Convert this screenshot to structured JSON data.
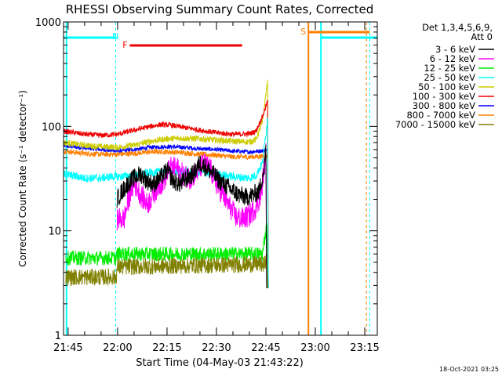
{
  "chart_data": {
    "type": "line",
    "title": "RHESSI Observing Summary Count Rates, Corrected",
    "xlabel": "Start Time (04-May-03 21:43:22)",
    "ylabel": "Corrected Count Rate (s⁻¹ detector⁻¹)",
    "yscale": "log",
    "ylim": [
      1,
      1000
    ],
    "xlim_minutes": [
      -1.4,
      93.8
    ],
    "x_ticks": [
      {
        "label": "21:45",
        "min": 0
      },
      {
        "label": "22:00",
        "min": 15
      },
      {
        "label": "22:15",
        "min": 30
      },
      {
        "label": "22:30",
        "min": 45
      },
      {
        "label": "22:45",
        "min": 60
      },
      {
        "label": "23:00",
        "min": 75
      },
      {
        "label": "23:15",
        "min": 90
      }
    ],
    "y_ticks": [
      {
        "label": "1",
        "value": 1
      },
      {
        "label": "10",
        "value": 10
      },
      {
        "label": "100",
        "value": 100
      },
      {
        "label": "1000",
        "value": 1000
      }
    ],
    "legend_header": [
      "Det 1,3,4,5,6,9,",
      "Att 0"
    ],
    "legend": [
      {
        "label": "3 - 6 keV",
        "color": "#000000"
      },
      {
        "label": "6 - 12 keV",
        "color": "#ff00ff"
      },
      {
        "label": "12 - 25 keV",
        "color": "#00ee00"
      },
      {
        "label": "25 - 50 keV",
        "color": "#00ffff"
      },
      {
        "label": "50 - 100 keV",
        "color": "#cccc00"
      },
      {
        "label": "100 - 300 keV",
        "color": "#ee0000"
      },
      {
        "label": "300 - 800 keV",
        "color": "#0000ff"
      },
      {
        "label": "800 - 7000 keV",
        "color": "#ff8000"
      },
      {
        "label": "7000 - 15000 keV",
        "color": "#808000"
      }
    ],
    "series": [
      {
        "name": "3 - 6 keV",
        "color": "#000000",
        "noise": 0.09,
        "points": [
          [
            14.8,
            20
          ],
          [
            16,
            23
          ],
          [
            18,
            28
          ],
          [
            20,
            32
          ],
          [
            22,
            35
          ],
          [
            24,
            30
          ],
          [
            26,
            28
          ],
          [
            28,
            32
          ],
          [
            30,
            38
          ],
          [
            32,
            30
          ],
          [
            34,
            28
          ],
          [
            36,
            32
          ],
          [
            38,
            35
          ],
          [
            40,
            45
          ],
          [
            42,
            40
          ],
          [
            44,
            35
          ],
          [
            46,
            30
          ],
          [
            48,
            27
          ],
          [
            50,
            24
          ],
          [
            52,
            22
          ],
          [
            54,
            21
          ],
          [
            56,
            22
          ],
          [
            58,
            24
          ],
          [
            59.5,
            40
          ],
          [
            60,
            60
          ]
        ]
      },
      {
        "name": "6 - 12 keV",
        "color": "#ff00ff",
        "noise": 0.11,
        "points": [
          [
            14.8,
            13
          ],
          [
            16,
            13
          ],
          [
            17,
            13
          ],
          [
            18,
            18
          ],
          [
            19,
            24
          ],
          [
            20,
            28
          ],
          [
            21,
            26
          ],
          [
            22,
            22
          ],
          [
            23,
            20
          ],
          [
            24,
            18
          ],
          [
            25,
            20
          ],
          [
            27,
            26
          ],
          [
            29,
            30
          ],
          [
            30,
            36
          ],
          [
            31,
            40
          ],
          [
            33,
            40
          ],
          [
            35,
            34
          ],
          [
            37,
            32
          ],
          [
            39,
            36
          ],
          [
            41,
            44
          ],
          [
            43,
            40
          ],
          [
            45,
            28
          ],
          [
            47,
            22
          ],
          [
            49,
            17
          ],
          [
            51,
            13.5
          ],
          [
            53,
            13
          ],
          [
            55,
            14
          ],
          [
            57,
            17
          ],
          [
            58.5,
            22
          ],
          [
            59.5,
            40
          ],
          [
            60,
            55
          ]
        ]
      },
      {
        "name": "12 - 25 keV",
        "color": "#00ee00",
        "noise": 0.07,
        "points": [
          [
            -0.7,
            5.5
          ],
          [
            14.5,
            5.5
          ],
          [
            15,
            6
          ],
          [
            59,
            6
          ],
          [
            59.5,
            8
          ],
          [
            60,
            10
          ],
          [
            60.3,
            11
          ]
        ]
      },
      {
        "name": "25 - 50 keV",
        "color": "#00ffff",
        "noise": 0.04,
        "points": [
          [
            -1.4,
            35
          ],
          [
            5,
            32
          ],
          [
            10,
            32
          ],
          [
            13,
            33
          ],
          [
            15,
            33
          ],
          [
            20,
            34
          ],
          [
            25,
            36
          ],
          [
            30,
            37
          ],
          [
            35,
            37
          ],
          [
            40,
            36
          ],
          [
            45,
            35
          ],
          [
            50,
            33
          ],
          [
            55,
            32
          ],
          [
            57,
            34
          ],
          [
            59,
            45
          ],
          [
            60.5,
            120
          ]
        ]
      },
      {
        "name": "50 - 100 keV",
        "color": "#cccc00",
        "noise": 0.03,
        "points": [
          [
            -1.4,
            70
          ],
          [
            5,
            66
          ],
          [
            10,
            64
          ],
          [
            15,
            63
          ],
          [
            20,
            66
          ],
          [
            25,
            72
          ],
          [
            30,
            76
          ],
          [
            35,
            77
          ],
          [
            40,
            76
          ],
          [
            45,
            74
          ],
          [
            50,
            72
          ],
          [
            55,
            71
          ],
          [
            57,
            75
          ],
          [
            59,
            110
          ],
          [
            60.5,
            280
          ]
        ]
      },
      {
        "name": "100 - 300 keV",
        "color": "#ee0000",
        "noise": 0.025,
        "points": [
          [
            -1.4,
            90
          ],
          [
            5,
            84
          ],
          [
            10,
            82
          ],
          [
            15,
            84
          ],
          [
            20,
            92
          ],
          [
            25,
            100
          ],
          [
            28,
            104
          ],
          [
            31,
            103
          ],
          [
            35,
            98
          ],
          [
            40,
            92
          ],
          [
            45,
            87
          ],
          [
            50,
            84
          ],
          [
            55,
            85
          ],
          [
            57,
            90
          ],
          [
            59,
            125
          ],
          [
            60.5,
            175
          ]
        ]
      },
      {
        "name": "300 - 800 keV",
        "color": "#0000ff",
        "noise": 0.02,
        "points": [
          [
            -1.4,
            65
          ],
          [
            5,
            62
          ],
          [
            10,
            60
          ],
          [
            15,
            58
          ],
          [
            20,
            60
          ],
          [
            25,
            63
          ],
          [
            30,
            64
          ],
          [
            35,
            63
          ],
          [
            40,
            61
          ],
          [
            45,
            60
          ],
          [
            50,
            58
          ],
          [
            55,
            57
          ],
          [
            60.5,
            59
          ]
        ]
      },
      {
        "name": "800 - 7000 keV",
        "color": "#ff8000",
        "noise": 0.025,
        "points": [
          [
            -1.4,
            58
          ],
          [
            5,
            55
          ],
          [
            10,
            54
          ],
          [
            15,
            54
          ],
          [
            20,
            55
          ],
          [
            25,
            57
          ],
          [
            30,
            57
          ],
          [
            35,
            56
          ],
          [
            40,
            54
          ],
          [
            45,
            53
          ],
          [
            50,
            51
          ],
          [
            55,
            51
          ],
          [
            60.5,
            52
          ]
        ]
      },
      {
        "name": "7000 - 15000 keV",
        "color": "#808000",
        "noise": 0.08,
        "points": [
          [
            -0.7,
            3.6
          ],
          [
            14.5,
            3.6
          ],
          [
            15,
            4.5
          ],
          [
            60,
            4.8
          ],
          [
            60.3,
            6
          ]
        ]
      }
    ],
    "annotations": [
      {
        "text": "N",
        "color": "#00ffff"
      },
      {
        "text": "F",
        "color": "#ee0000"
      },
      {
        "text": "S",
        "color": "#ff8000"
      }
    ],
    "footer_timestamp": "18-Oct-2021 03:25"
  }
}
